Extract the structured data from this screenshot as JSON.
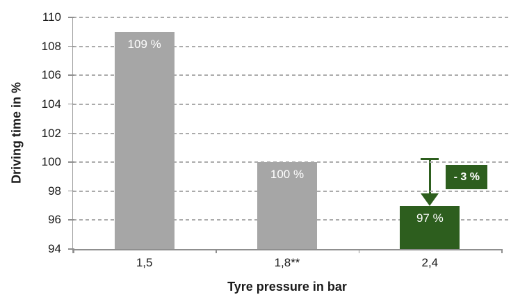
{
  "chart_data": {
    "type": "bar",
    "title": "",
    "xlabel": "Tyre pressure in bar",
    "ylabel": "Driving time in %",
    "categories": [
      "1,5",
      "1,8**",
      "2,4"
    ],
    "values": [
      109,
      100,
      97
    ],
    "bar_labels": [
      "109 %",
      "100 %",
      "97 %"
    ],
    "bar_colors": [
      "#A6A6A6",
      "#A6A6A6",
      "#2D5E1E"
    ],
    "ylim": [
      94,
      110
    ],
    "yticks": [
      94,
      96,
      98,
      100,
      102,
      104,
      106,
      108,
      110
    ],
    "grid": "horizontal-dashed",
    "legend": "none",
    "annotation": {
      "label": "- 3 %",
      "category": "2,4",
      "category_index": 2,
      "from_value": 100,
      "to_value": 97,
      "box_color": "#2D5E1E",
      "text_color": "#FFFFFF"
    }
  },
  "colors": {
    "bar_gray": "#A6A6A6",
    "bar_green": "#2D5E1E",
    "gridline": "#ABABAB",
    "axis": "#8F8F8F",
    "text": "#1A1A1A",
    "bar_label_text": "#FFFFFF"
  }
}
